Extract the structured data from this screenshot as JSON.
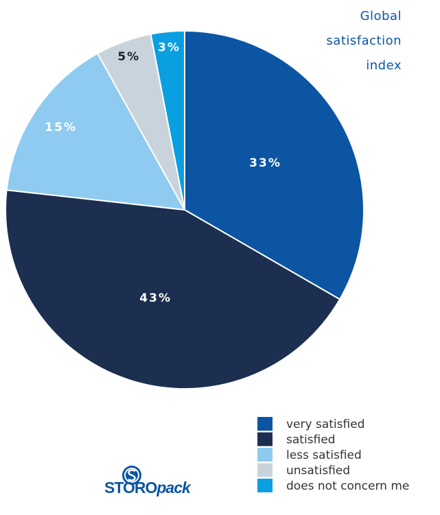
{
  "chart_data": {
    "type": "pie",
    "title": "Global satisfaction index",
    "categories": [
      "very satisfied",
      "satisfied",
      "less satisfied",
      "unsatisfied",
      "does not concern me"
    ],
    "values": [
      33,
      43,
      15,
      5,
      3
    ],
    "value_labels": [
      "33%",
      "43%",
      "15%",
      "5%",
      "3%"
    ],
    "colors": [
      "#0b55a3",
      "#1c2f50",
      "#8fcbf0",
      "#c9d3db",
      "#0a9fe0"
    ],
    "legend": "bottom-right"
  },
  "logo": [
    "STORO",
    "pack"
  ]
}
